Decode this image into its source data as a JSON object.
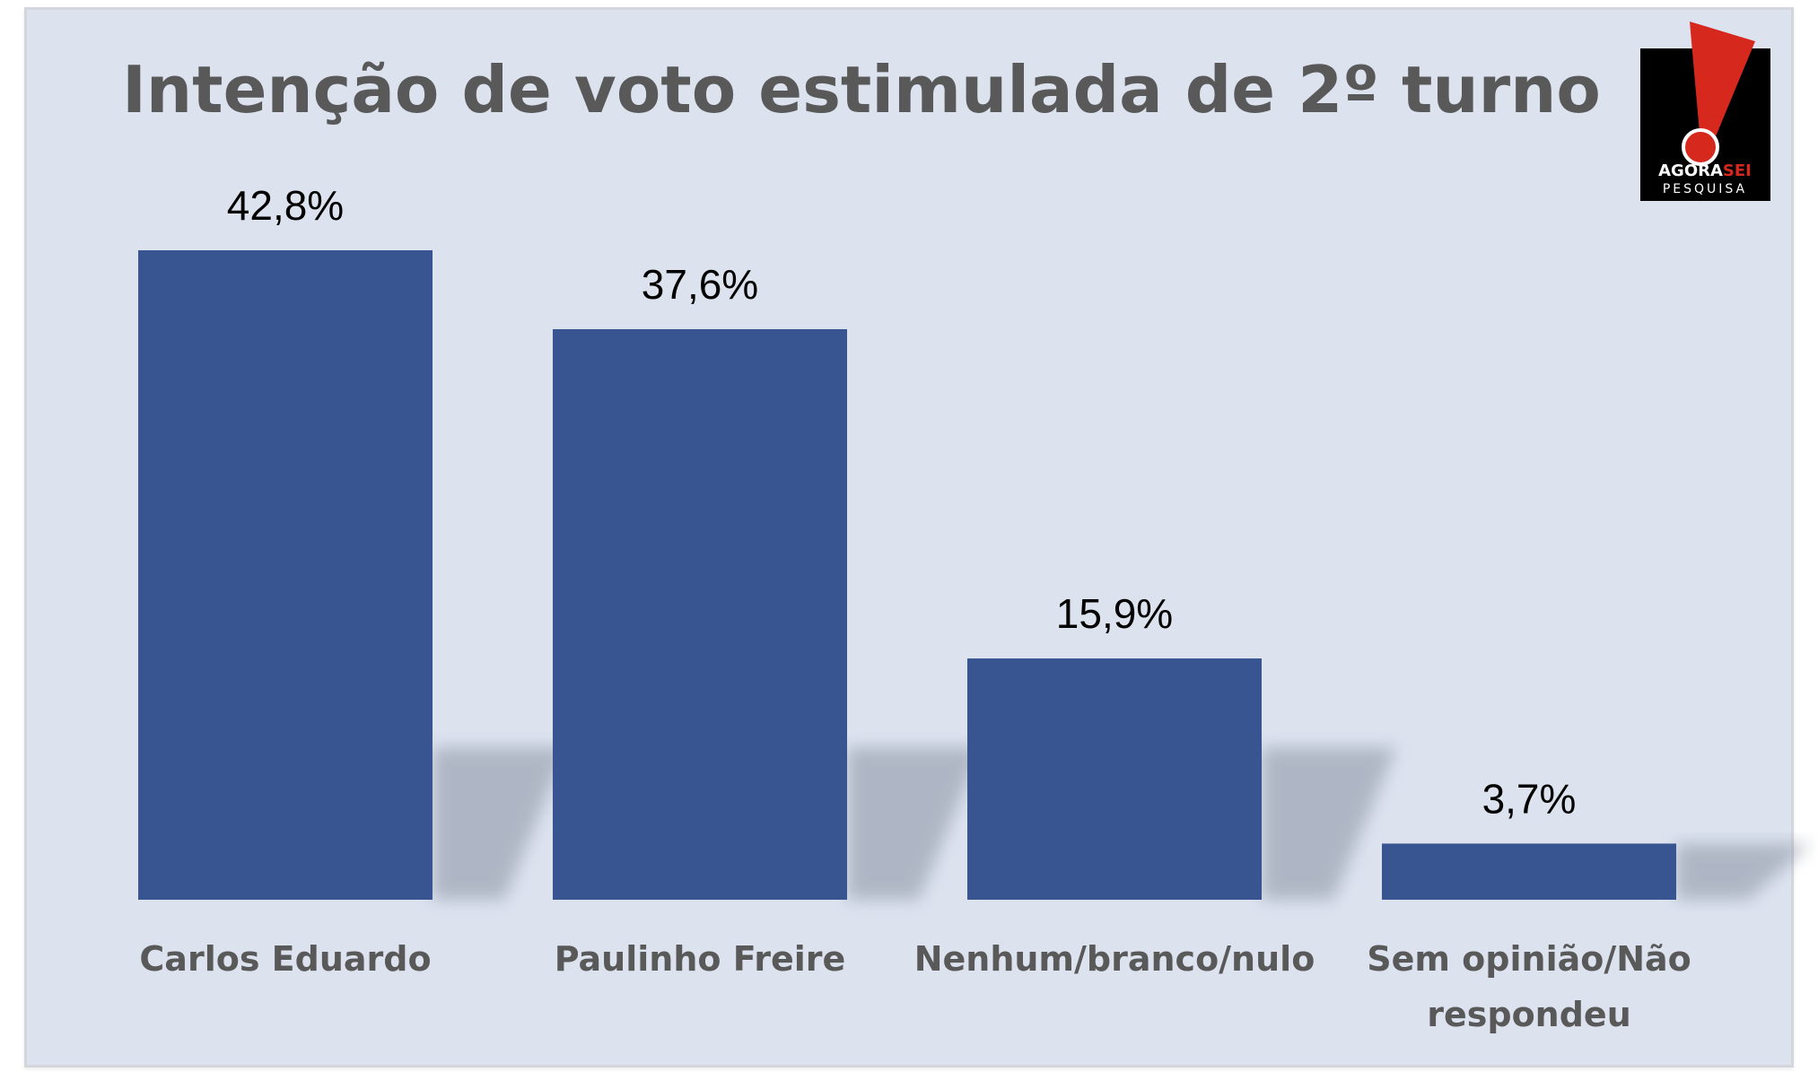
{
  "chart_data": {
    "type": "bar",
    "title": "Intenção de voto estimulada de 2º turno",
    "categories": [
      "Carlos Eduardo",
      "Paulinho Freire",
      "Nenhum/branco/nulo",
      "Sem opinião/Não respondeu"
    ],
    "category_lines": [
      [
        "Carlos Eduardo"
      ],
      [
        "Paulinho Freire"
      ],
      [
        "Nenhum/branco/nulo"
      ],
      [
        "Sem opinião/Não",
        "respondeu"
      ]
    ],
    "values": [
      42.8,
      37.6,
      15.9,
      3.7
    ],
    "data_labels": [
      "42,8%",
      "37,6%",
      "15,9%",
      "3,7%"
    ],
    "xlabel": "",
    "ylabel": "",
    "ylim": [
      0,
      42.8
    ],
    "grid": false,
    "legend": "none"
  },
  "logo": {
    "word_black": "AGORA",
    "word_red": "SEI",
    "subtitle": "PESQUISA"
  },
  "colors": {
    "background": "#dce3ef",
    "bar": "#385592",
    "title": "#595959",
    "label": "#595959",
    "value_label": "#000000",
    "logo_red": "#d7281e",
    "logo_black": "#000000"
  }
}
